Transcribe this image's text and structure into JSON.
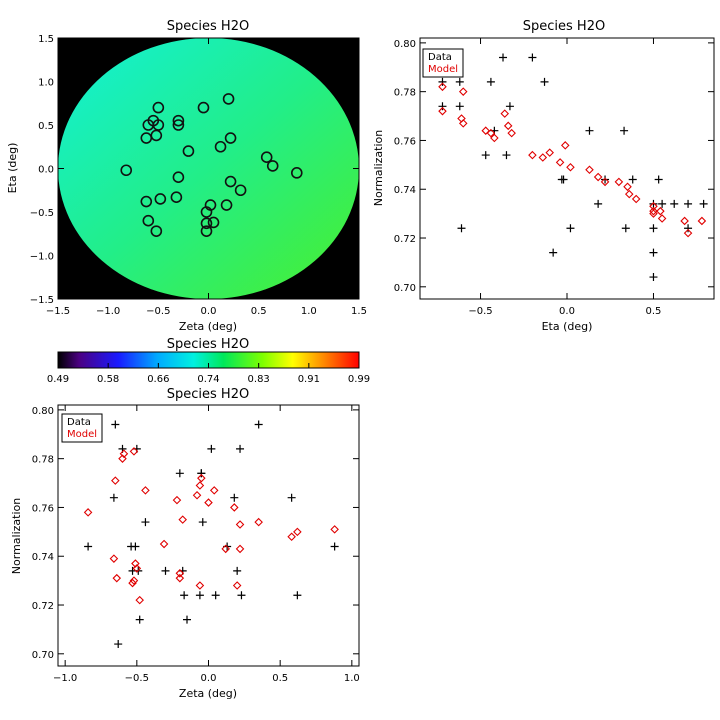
{
  "chart_data": [
    {
      "type": "heatmap",
      "title": "Species H2O",
      "xlabel": "Zeta (deg)",
      "ylabel": "Eta (deg)",
      "xlim": [
        -1.5,
        1.5
      ],
      "ylim": [
        -1.5,
        1.5
      ],
      "xticks": [
        "−1.5",
        "−1.0",
        "−0.5",
        "0.0",
        "0.5",
        "1.0",
        "1.5"
      ],
      "yticks": [
        "−1.5",
        "−1.0",
        "−0.5",
        "0.0",
        "0.5",
        "1.0",
        "1.5"
      ],
      "field_radius_deg": 1.5,
      "field_gradient": {
        "top_left": 0.7,
        "center": 0.74,
        "bottom_right": 0.76
      },
      "background_color": "#000000",
      "marker": "open-circle",
      "positions": [
        [
          -0.5,
          0.7
        ],
        [
          -0.05,
          0.7
        ],
        [
          0.2,
          0.8
        ],
        [
          -0.55,
          0.55
        ],
        [
          -0.6,
          0.5
        ],
        [
          -0.5,
          0.5
        ],
        [
          -0.3,
          0.5
        ],
        [
          -0.3,
          0.55
        ],
        [
          -0.62,
          0.35
        ],
        [
          -0.52,
          0.38
        ],
        [
          0.22,
          0.35
        ],
        [
          0.12,
          0.25
        ],
        [
          -0.2,
          0.2
        ],
        [
          0.58,
          0.13
        ],
        [
          0.64,
          0.03
        ],
        [
          -0.82,
          -0.02
        ],
        [
          0.88,
          -0.05
        ],
        [
          -0.3,
          -0.1
        ],
        [
          0.22,
          -0.15
        ],
        [
          0.32,
          -0.25
        ],
        [
          -0.48,
          -0.35
        ],
        [
          -0.62,
          -0.38
        ],
        [
          -0.32,
          -0.33
        ],
        [
          0.18,
          -0.42
        ],
        [
          0.02,
          -0.42
        ],
        [
          -0.02,
          -0.5
        ],
        [
          -0.6,
          -0.6
        ],
        [
          0.05,
          -0.62
        ],
        [
          -0.02,
          -0.63
        ],
        [
          -0.52,
          -0.72
        ],
        [
          -0.02,
          -0.72
        ]
      ]
    },
    {
      "type": "colorbar",
      "title": "Species H2O",
      "range": [
        0.49,
        0.99
      ],
      "tick_labels": [
        "0.49",
        "0.58",
        "0.66",
        "0.74",
        "0.83",
        "0.91",
        "0.99"
      ]
    },
    {
      "type": "scatter",
      "title": "Species H2O",
      "xlabel": "Eta (deg)",
      "ylabel": "Normalization",
      "xlim": [
        -0.85,
        0.85
      ],
      "ylim": [
        0.695,
        0.802
      ],
      "xticks": [
        [
          "−0.5",
          -0.5
        ],
        [
          "0.0",
          0.0
        ],
        [
          "0.5",
          0.5
        ]
      ],
      "yticks": [
        "0.70",
        "0.72",
        "0.74",
        "0.76",
        "0.78",
        "0.80"
      ],
      "legend": {
        "position": "top-left",
        "entries": [
          {
            "label": "Data",
            "color": "#000000"
          },
          {
            "label": "Model",
            "color": "#e00000"
          }
        ]
      },
      "series": [
        {
          "name": "Data",
          "marker": "plus",
          "color": "#000000",
          "points": [
            [
              -0.72,
              0.774
            ],
            [
              -0.72,
              0.784
            ],
            [
              -0.62,
              0.784
            ],
            [
              -0.62,
              0.774
            ],
            [
              -0.61,
              0.724
            ],
            [
              -0.44,
              0.784
            ],
            [
              -0.37,
              0.794
            ],
            [
              -0.35,
              0.754
            ],
            [
              -0.33,
              0.774
            ],
            [
              -0.47,
              0.754
            ],
            [
              -0.42,
              0.764
            ],
            [
              -0.2,
              0.794
            ],
            [
              -0.13,
              0.784
            ],
            [
              -0.08,
              0.714
            ],
            [
              -0.03,
              0.744
            ],
            [
              -0.02,
              0.744
            ],
            [
              0.02,
              0.724
            ],
            [
              0.13,
              0.764
            ],
            [
              0.18,
              0.734
            ],
            [
              0.22,
              0.744
            ],
            [
              0.33,
              0.764
            ],
            [
              0.34,
              0.724
            ],
            [
              0.38,
              0.744
            ],
            [
              0.5,
              0.734
            ],
            [
              0.5,
              0.724
            ],
            [
              0.5,
              0.714
            ],
            [
              0.5,
              0.704
            ],
            [
              0.53,
              0.744
            ],
            [
              0.55,
              0.734
            ],
            [
              0.62,
              0.734
            ],
            [
              0.7,
              0.734
            ],
            [
              0.7,
              0.724
            ],
            [
              0.79,
              0.734
            ]
          ]
        },
        {
          "name": "Model",
          "marker": "diamond",
          "color": "#e00000",
          "points": [
            [
              -0.72,
              0.772
            ],
            [
              -0.72,
              0.782
            ],
            [
              -0.6,
              0.78
            ],
            [
              -0.61,
              0.769
            ],
            [
              -0.6,
              0.767
            ],
            [
              -0.47,
              0.764
            ],
            [
              -0.44,
              0.763
            ],
            [
              -0.42,
              0.761
            ],
            [
              -0.36,
              0.771
            ],
            [
              -0.34,
              0.766
            ],
            [
              -0.32,
              0.763
            ],
            [
              -0.2,
              0.754
            ],
            [
              -0.14,
              0.753
            ],
            [
              -0.1,
              0.755
            ],
            [
              -0.04,
              0.751
            ],
            [
              -0.01,
              0.758
            ],
            [
              0.02,
              0.749
            ],
            [
              0.13,
              0.748
            ],
            [
              0.18,
              0.745
            ],
            [
              0.22,
              0.743
            ],
            [
              0.3,
              0.743
            ],
            [
              0.35,
              0.741
            ],
            [
              0.36,
              0.738
            ],
            [
              0.4,
              0.736
            ],
            [
              0.5,
              0.733
            ],
            [
              0.5,
              0.731
            ],
            [
              0.5,
              0.73
            ],
            [
              0.54,
              0.731
            ],
            [
              0.55,
              0.728
            ],
            [
              0.68,
              0.727
            ],
            [
              0.7,
              0.722
            ],
            [
              0.78,
              0.727
            ]
          ]
        }
      ]
    },
    {
      "type": "scatter",
      "title": "Species H2O",
      "xlabel": "Zeta (deg)",
      "ylabel": "Normalization",
      "xlim": [
        -1.05,
        1.05
      ],
      "ylim": [
        0.695,
        0.802
      ],
      "xticks": [
        [
          "−1.0",
          -1.0
        ],
        [
          "−0.5",
          -0.5
        ],
        [
          "0.0",
          0.0
        ],
        [
          "0.5",
          0.5
        ],
        [
          "1.0",
          1.0
        ]
      ],
      "yticks": [
        "0.70",
        "0.72",
        "0.74",
        "0.76",
        "0.78",
        "0.80"
      ],
      "legend": {
        "position": "top-left",
        "entries": [
          {
            "label": "Data",
            "color": "#000000"
          },
          {
            "label": "Model",
            "color": "#e00000"
          }
        ]
      },
      "series": [
        {
          "name": "Data",
          "marker": "plus",
          "color": "#000000",
          "points": [
            [
              -0.84,
              0.744
            ],
            [
              -0.65,
              0.794
            ],
            [
              -0.66,
              0.764
            ],
            [
              -0.6,
              0.784
            ],
            [
              -0.5,
              0.784
            ],
            [
              -0.63,
              0.704
            ],
            [
              -0.54,
              0.744
            ],
            [
              -0.51,
              0.744
            ],
            [
              -0.44,
              0.754
            ],
            [
              -0.53,
              0.734
            ],
            [
              -0.49,
              0.734
            ],
            [
              -0.48,
              0.714
            ],
            [
              -0.3,
              0.734
            ],
            [
              -0.2,
              0.774
            ],
            [
              -0.18,
              0.734
            ],
            [
              -0.17,
              0.724
            ],
            [
              -0.15,
              0.714
            ],
            [
              -0.05,
              0.774
            ],
            [
              -0.05,
              0.774
            ],
            [
              -0.04,
              0.754
            ],
            [
              -0.06,
              0.724
            ],
            [
              0.02,
              0.784
            ],
            [
              0.05,
              0.724
            ],
            [
              0.13,
              0.744
            ],
            [
              0.18,
              0.764
            ],
            [
              0.2,
              0.734
            ],
            [
              0.23,
              0.724
            ],
            [
              0.22,
              0.784
            ],
            [
              0.35,
              0.794
            ],
            [
              0.58,
              0.764
            ],
            [
              0.62,
              0.724
            ],
            [
              0.88,
              0.744
            ]
          ]
        },
        {
          "name": "Model",
          "marker": "diamond",
          "color": "#e00000",
          "points": [
            [
              -0.84,
              0.758
            ],
            [
              -0.65,
              0.771
            ],
            [
              -0.66,
              0.739
            ],
            [
              -0.64,
              0.731
            ],
            [
              -0.6,
              0.78
            ],
            [
              -0.59,
              0.782
            ],
            [
              -0.52,
              0.783
            ],
            [
              -0.52,
              0.73
            ],
            [
              -0.53,
              0.729
            ],
            [
              -0.51,
              0.737
            ],
            [
              -0.5,
              0.735
            ],
            [
              -0.48,
              0.722
            ],
            [
              -0.44,
              0.767
            ],
            [
              -0.31,
              0.745
            ],
            [
              -0.22,
              0.763
            ],
            [
              -0.2,
              0.733
            ],
            [
              -0.2,
              0.731
            ],
            [
              -0.18,
              0.755
            ],
            [
              -0.08,
              0.765
            ],
            [
              -0.06,
              0.769
            ],
            [
              -0.05,
              0.772
            ],
            [
              -0.06,
              0.728
            ],
            [
              0.0,
              0.762
            ],
            [
              0.04,
              0.767
            ],
            [
              0.12,
              0.743
            ],
            [
              0.18,
              0.76
            ],
            [
              0.2,
              0.728
            ],
            [
              0.22,
              0.753
            ],
            [
              0.22,
              0.743
            ],
            [
              0.35,
              0.754
            ],
            [
              0.58,
              0.748
            ],
            [
              0.62,
              0.75
            ],
            [
              0.88,
              0.751
            ]
          ]
        }
      ]
    }
  ]
}
